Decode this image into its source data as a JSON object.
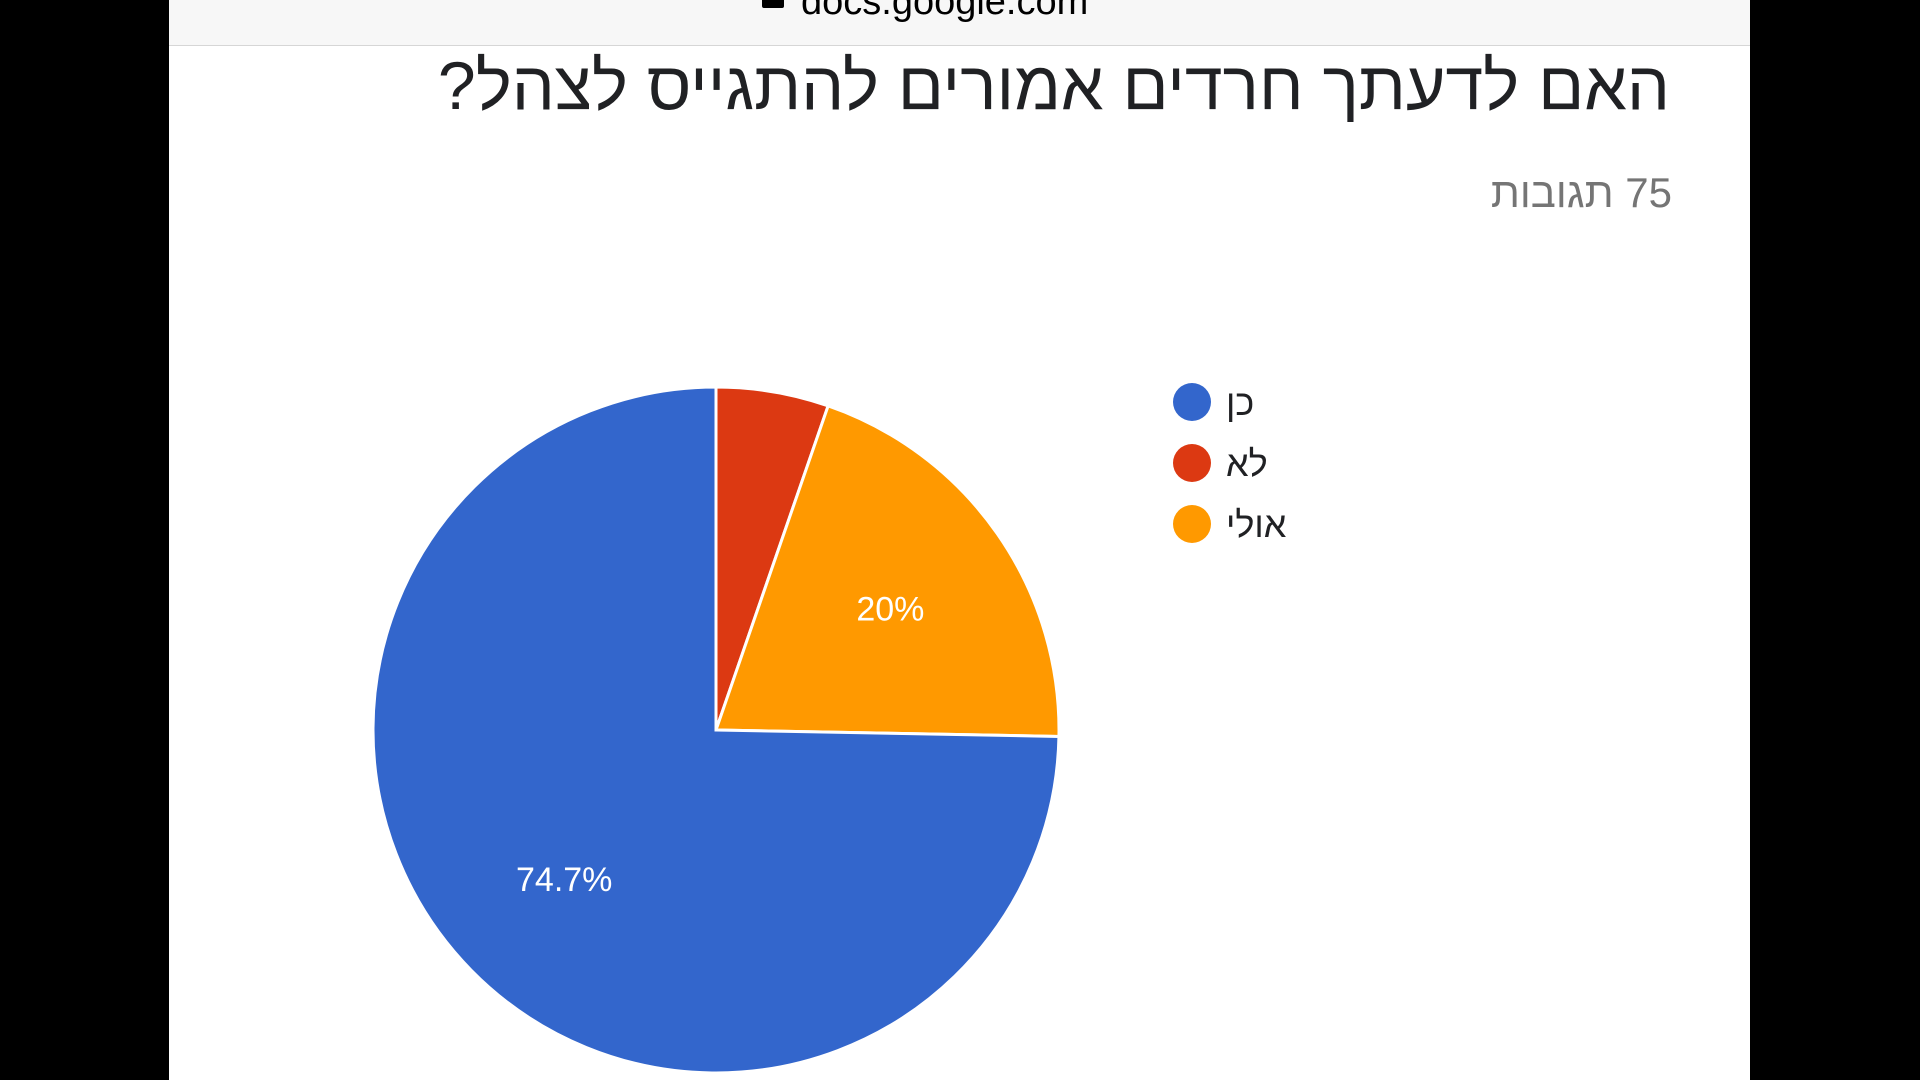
{
  "browser": {
    "url": "docs.google.com"
  },
  "form": {
    "question": "האם לדעתך חרדים אמורים להתגייס לצהל?",
    "responses_label": "75 תגובות"
  },
  "chart_data": {
    "type": "pie",
    "title": "",
    "slices": [
      {
        "label": "כן",
        "value": 74.7,
        "color": "#3366cc",
        "data_label": "74.7%"
      },
      {
        "label": "לא",
        "value": 5.3,
        "color": "#dc3912",
        "data_label": ""
      },
      {
        "label": "אולי",
        "value": 20,
        "color": "#ff9900",
        "data_label": "20%"
      }
    ],
    "legend_position": "right"
  }
}
